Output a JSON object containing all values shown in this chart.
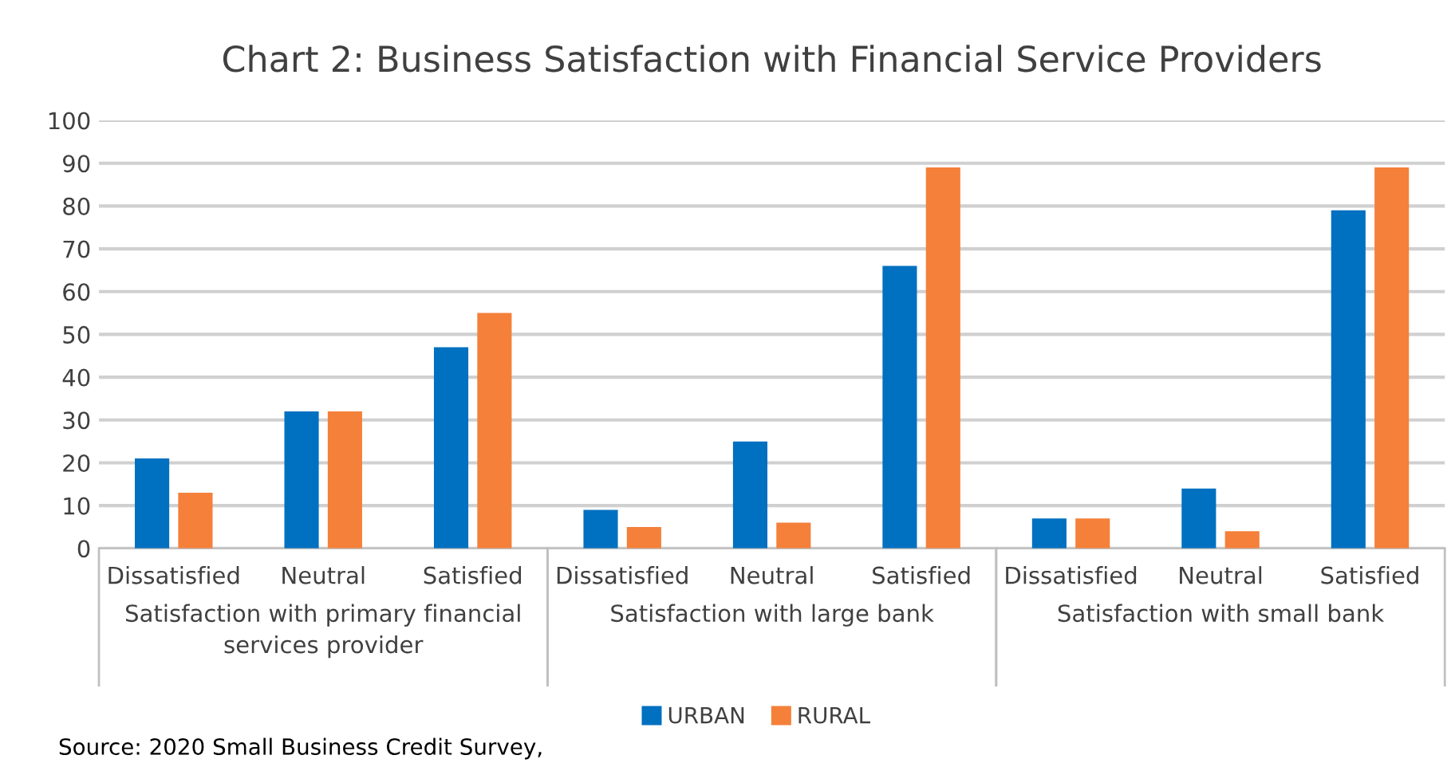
{
  "chart_data": {
    "type": "bar",
    "title": "Chart 2: Business Satisfaction with Financial Service Providers",
    "categories": [
      "Dissatisfied",
      "Neutral",
      "Satisfied",
      "Dissatisfied",
      "Neutral",
      "Satisfied",
      "Dissatisfied",
      "Neutral",
      "Satisfied"
    ],
    "series": [
      {
        "name": "URBAN",
        "color": "#0070c0",
        "values": [
          21,
          32,
          47,
          9,
          25,
          66,
          7,
          14,
          79
        ]
      },
      {
        "name": "RURAL",
        "color": "#f4803a",
        "values": [
          13,
          32,
          55,
          5,
          6,
          89,
          7,
          4,
          89
        ]
      }
    ],
    "annotations": [
      "Satisfaction with primary financial\nservices provider",
      "Satisfaction with large bank",
      "Satisfaction with small bank",
      "Source: 2020 Small Business Credit Survey,"
    ],
    "ylim": [
      0,
      100
    ],
    "yticks": [
      0,
      10,
      20,
      30,
      40,
      50,
      60,
      70,
      80,
      90,
      100
    ],
    "grid": "y",
    "legend": "bottom"
  }
}
